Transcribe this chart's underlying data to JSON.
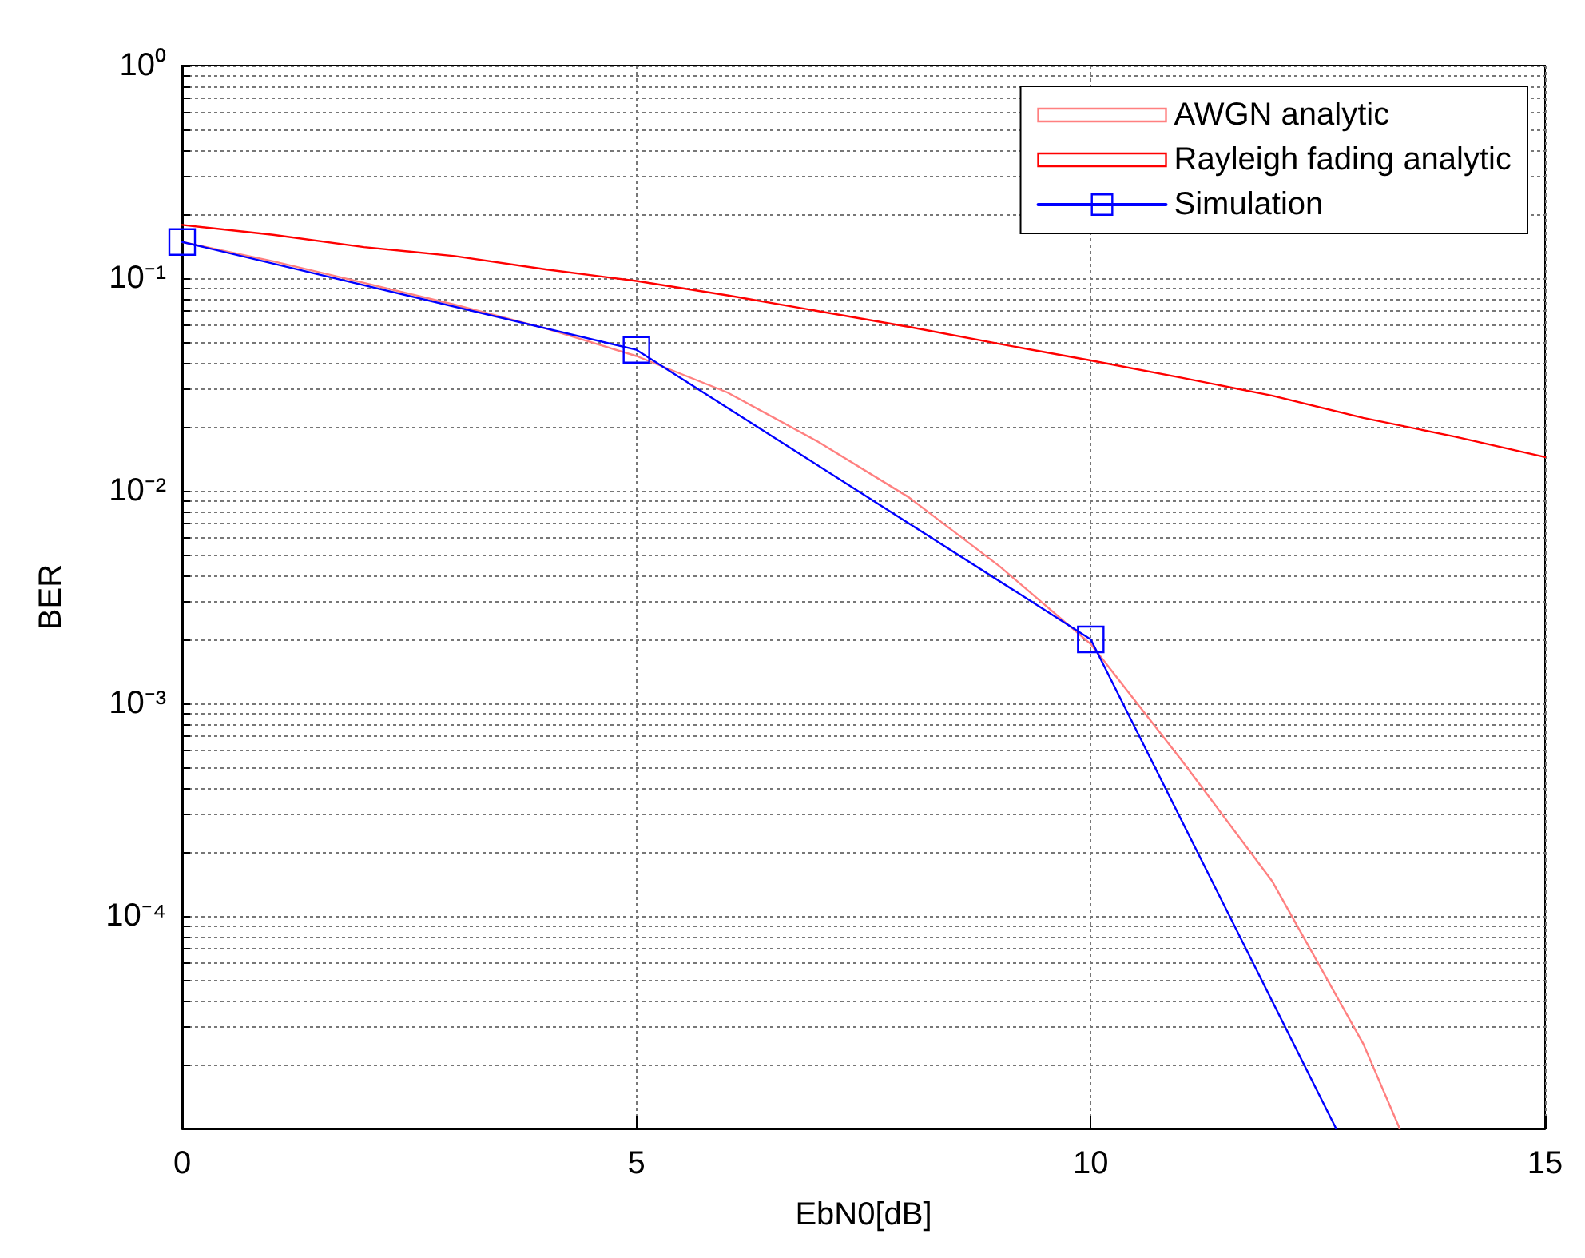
{
  "chart_data": {
    "type": "line",
    "xlabel": "EbN0[dB]",
    "ylabel": "BER",
    "log": "y",
    "grid": true,
    "legend": "top right",
    "xlim": [
      0,
      15
    ],
    "xticks": [
      0,
      5,
      10,
      15
    ],
    "ylim": [
      1e-05,
      1
    ],
    "yticks": [
      {
        "value": 1e-05,
        "label": null
      },
      {
        "value": 2e-05,
        "label": null
      },
      {
        "value": 3e-05,
        "label": null
      },
      {
        "value": 4e-05,
        "label": null
      },
      {
        "value": 5e-05,
        "label": null
      },
      {
        "value": 6e-05,
        "label": null
      },
      {
        "value": 7e-05,
        "label": null
      },
      {
        "value": 8e-05,
        "label": null
      },
      {
        "value": 9e-05,
        "label": null
      },
      {
        "value": 0.0001,
        "label": "10⁻⁴"
      },
      {
        "value": 0.0002,
        "label": null
      },
      {
        "value": 0.0003,
        "label": null
      },
      {
        "value": 0.0004,
        "label": null
      },
      {
        "value": 0.0005,
        "label": null
      },
      {
        "value": 0.0006,
        "label": null
      },
      {
        "value": 0.0007,
        "label": null
      },
      {
        "value": 0.0008,
        "label": null
      },
      {
        "value": 0.0009,
        "label": null
      },
      {
        "value": 0.001,
        "label": "10⁻³"
      },
      {
        "value": 0.002,
        "label": null
      },
      {
        "value": 0.003,
        "label": null
      },
      {
        "value": 0.004,
        "label": null
      },
      {
        "value": 0.005,
        "label": null
      },
      {
        "value": 0.006,
        "label": null
      },
      {
        "value": 0.007,
        "label": null
      },
      {
        "value": 0.008,
        "label": null
      },
      {
        "value": 0.009,
        "label": null
      },
      {
        "value": 0.01,
        "label": "10⁻²"
      },
      {
        "value": 0.02,
        "label": null
      },
      {
        "value": 0.03,
        "label": null
      },
      {
        "value": 0.04,
        "label": null
      },
      {
        "value": 0.05,
        "label": null
      },
      {
        "value": 0.06,
        "label": null
      },
      {
        "value": 0.07,
        "label": null
      },
      {
        "value": 0.08,
        "label": null
      },
      {
        "value": 0.09,
        "label": null
      },
      {
        "value": 0.1,
        "label": "10⁻¹"
      },
      {
        "value": 0.2,
        "label": null
      },
      {
        "value": 0.3,
        "label": null
      },
      {
        "value": 0.4,
        "label": null
      },
      {
        "value": 0.5,
        "label": null
      },
      {
        "value": 0.6,
        "label": null
      },
      {
        "value": 0.7,
        "label": null
      },
      {
        "value": 0.8,
        "label": null
      },
      {
        "value": 0.9,
        "label": null
      },
      {
        "value": 1,
        "label": "10⁰"
      }
    ],
    "series": [
      {
        "name": "AWGN analytic",
        "color": "#ff8080",
        "marker": "none",
        "x": [
          0,
          1,
          2,
          3,
          4,
          5,
          6,
          7,
          8,
          9,
          10,
          11,
          12,
          13,
          13.4
        ],
        "values": [
          0.148,
          0.12,
          0.095,
          0.075,
          0.058,
          0.043,
          0.029,
          0.017,
          0.0093,
          0.0044,
          0.0019,
          0.00054,
          0.000145,
          2.5e-05,
          1e-05
        ]
      },
      {
        "name": "Rayleigh fading analytic",
        "color": "#ff0000",
        "marker": "none",
        "x": [
          0,
          1,
          2,
          3,
          4,
          5,
          6,
          7,
          8,
          9,
          10,
          11,
          12,
          13,
          14,
          15
        ],
        "values": [
          0.178,
          0.16,
          0.14,
          0.127,
          0.11,
          0.097,
          0.083,
          0.07,
          0.059,
          0.049,
          0.041,
          0.034,
          0.028,
          0.022,
          0.018,
          0.0144
        ]
      },
      {
        "name": "Simulation",
        "color": "#0000ff",
        "marker": "square",
        "x": [
          0,
          5,
          10,
          12.7
        ],
        "values": [
          0.148,
          0.046,
          0.002,
          1e-05
        ]
      }
    ]
  }
}
